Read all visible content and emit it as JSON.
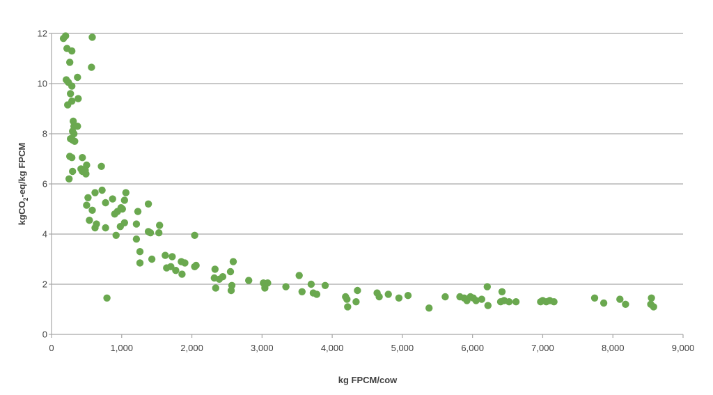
{
  "chart_data": {
    "type": "scatter",
    "xlabel": "kg FPCM/cow",
    "ylabel": {
      "pre": "kgCO",
      "sub": "2",
      "post": "-eq/kg FPCM"
    },
    "xlim": [
      0,
      9000
    ],
    "ylim": [
      0,
      12
    ],
    "x_ticks": [
      0,
      1000,
      2000,
      3000,
      4000,
      5000,
      6000,
      7000,
      8000,
      9000
    ],
    "x_tick_labels": [
      "0",
      "1,000",
      "2,000",
      "3,000",
      "4,000",
      "5,000",
      "6,000",
      "7,000",
      "8,000",
      "9,000"
    ],
    "y_ticks": [
      0,
      2,
      4,
      6,
      8,
      10,
      12
    ],
    "y_tick_labels": [
      "0",
      "2",
      "4",
      "6",
      "8",
      "10",
      "12"
    ],
    "grid": "horizontal",
    "legend": "none",
    "colors": {
      "marker": "#6aa84f",
      "grid": "#a6a6a6",
      "axis": "#a6a6a6",
      "text": "#404040"
    },
    "series": [
      {
        "points": [
          [
            170,
            11.8
          ],
          [
            200,
            11.9
          ],
          [
            220,
            11.4
          ],
          [
            290,
            11.3
          ],
          [
            580,
            11.85
          ],
          [
            260,
            10.85
          ],
          [
            570,
            10.65
          ],
          [
            210,
            10.15
          ],
          [
            370,
            10.25
          ],
          [
            240,
            10.05
          ],
          [
            290,
            9.9
          ],
          [
            270,
            9.6
          ],
          [
            230,
            9.15
          ],
          [
            290,
            9.3
          ],
          [
            380,
            9.4
          ],
          [
            310,
            8.5
          ],
          [
            320,
            8.3
          ],
          [
            370,
            8.3
          ],
          [
            300,
            8.1
          ],
          [
            320,
            8.0
          ],
          [
            270,
            7.8
          ],
          [
            300,
            7.75
          ],
          [
            330,
            7.7
          ],
          [
            260,
            7.1
          ],
          [
            290,
            7.05
          ],
          [
            440,
            7.05
          ],
          [
            710,
            6.7
          ],
          [
            500,
            6.75
          ],
          [
            420,
            6.6
          ],
          [
            440,
            6.5
          ],
          [
            480,
            6.55
          ],
          [
            490,
            6.4
          ],
          [
            300,
            6.5
          ],
          [
            250,
            6.2
          ],
          [
            620,
            5.65
          ],
          [
            720,
            5.75
          ],
          [
            1060,
            5.65
          ],
          [
            520,
            5.45
          ],
          [
            770,
            5.25
          ],
          [
            870,
            5.4
          ],
          [
            1040,
            5.35
          ],
          [
            500,
            5.15
          ],
          [
            990,
            5.05
          ],
          [
            1380,
            5.2
          ],
          [
            1010,
            5.0
          ],
          [
            580,
            4.95
          ],
          [
            940,
            4.9
          ],
          [
            900,
            4.8
          ],
          [
            1230,
            4.9
          ],
          [
            540,
            4.55
          ],
          [
            640,
            4.4
          ],
          [
            620,
            4.25
          ],
          [
            770,
            4.25
          ],
          [
            1040,
            4.45
          ],
          [
            980,
            4.3
          ],
          [
            1210,
            4.4
          ],
          [
            1540,
            4.35
          ],
          [
            1380,
            4.1
          ],
          [
            1410,
            4.05
          ],
          [
            1530,
            4.05
          ],
          [
            920,
            3.95
          ],
          [
            2040,
            3.95
          ],
          [
            1210,
            3.8
          ],
          [
            1260,
            3.3
          ],
          [
            1620,
            3.15
          ],
          [
            1720,
            3.1
          ],
          [
            1430,
            3.0
          ],
          [
            1260,
            2.85
          ],
          [
            1850,
            2.9
          ],
          [
            1900,
            2.85
          ],
          [
            2590,
            2.9
          ],
          [
            2060,
            2.75
          ],
          [
            2040,
            2.7
          ],
          [
            1640,
            2.65
          ],
          [
            1700,
            2.7
          ],
          [
            1770,
            2.55
          ],
          [
            1860,
            2.4
          ],
          [
            2330,
            2.6
          ],
          [
            2550,
            2.5
          ],
          [
            2440,
            2.3
          ],
          [
            2320,
            2.25
          ],
          [
            2390,
            2.2
          ],
          [
            2810,
            2.15
          ],
          [
            3530,
            2.35
          ],
          [
            3020,
            2.05
          ],
          [
            3080,
            2.05
          ],
          [
            3040,
            1.95
          ],
          [
            3700,
            2.0
          ],
          [
            3900,
            1.95
          ],
          [
            2570,
            1.95
          ],
          [
            3040,
            1.85
          ],
          [
            3340,
            1.9
          ],
          [
            2340,
            1.85
          ],
          [
            2560,
            1.75
          ],
          [
            3570,
            1.7
          ],
          [
            3730,
            1.65
          ],
          [
            3780,
            1.6
          ],
          [
            4360,
            1.75
          ],
          [
            4640,
            1.65
          ],
          [
            4670,
            1.5
          ],
          [
            4800,
            1.6
          ],
          [
            4950,
            1.45
          ],
          [
            5080,
            1.55
          ],
          [
            4190,
            1.5
          ],
          [
            4210,
            1.4
          ],
          [
            4340,
            1.3
          ],
          [
            4220,
            1.1
          ],
          [
            5380,
            1.05
          ],
          [
            5610,
            1.5
          ],
          [
            5820,
            1.5
          ],
          [
            5880,
            1.45
          ],
          [
            5920,
            1.35
          ],
          [
            5970,
            1.5
          ],
          [
            6010,
            1.45
          ],
          [
            6050,
            1.35
          ],
          [
            6130,
            1.4
          ],
          [
            6210,
            1.9
          ],
          [
            6220,
            1.15
          ],
          [
            6400,
            1.3
          ],
          [
            6420,
            1.7
          ],
          [
            6450,
            1.35
          ],
          [
            6520,
            1.3
          ],
          [
            6620,
            1.3
          ],
          [
            6970,
            1.3
          ],
          [
            7000,
            1.35
          ],
          [
            7050,
            1.3
          ],
          [
            7100,
            1.35
          ],
          [
            7160,
            1.3
          ],
          [
            7740,
            1.45
          ],
          [
            7870,
            1.25
          ],
          [
            8100,
            1.4
          ],
          [
            8180,
            1.2
          ],
          [
            8550,
            1.45
          ],
          [
            8540,
            1.2
          ],
          [
            8580,
            1.1
          ],
          [
            790,
            1.45
          ]
        ]
      }
    ]
  }
}
